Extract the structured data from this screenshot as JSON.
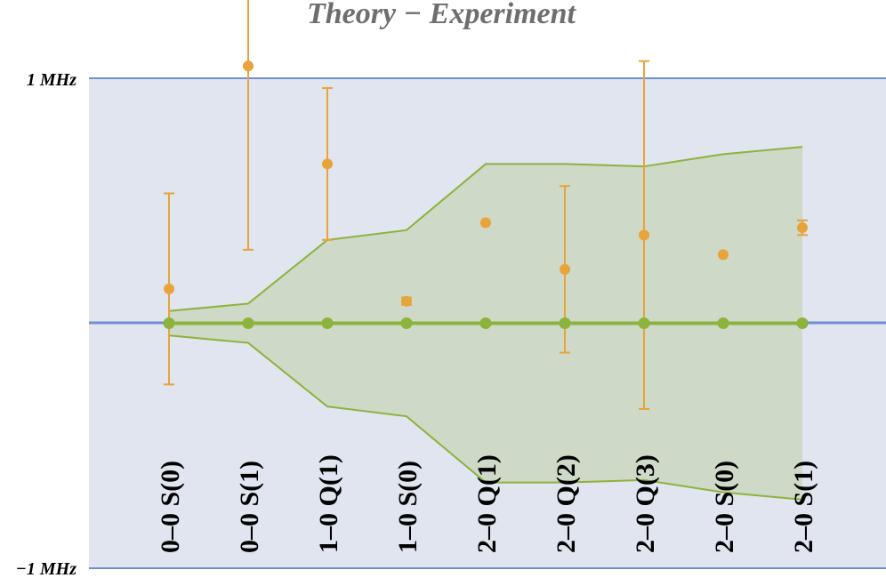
{
  "chart_data": {
    "type": "scatter",
    "title": "Theory − Experiment",
    "y_tick_labels": [
      "1 MHz",
      "−1 MHz"
    ],
    "ylim": [
      -1,
      1
    ],
    "categories": [
      "0–0 S(0)",
      "0–0 S(1)",
      "1–0 Q(1)",
      "1–0 S(0)",
      "2–0 Q(1)",
      "2–0 Q(2)",
      "2–0 Q(3)",
      "2–0 S(0)",
      "2–0 S(1)"
    ],
    "series": [
      {
        "kind": "points_with_error_bars",
        "color": "#e8a33a",
        "values": [
          0.14,
          1.05,
          0.65,
          0.09,
          0.41,
          0.22,
          0.36,
          0.28,
          0.39
        ],
        "errors": [
          0.39,
          0.75,
          0.31,
          0.015,
          0.0,
          0.34,
          0.71,
          0.0,
          0.03
        ]
      },
      {
        "kind": "zero_line_points",
        "color": "#8cb33c",
        "values": [
          0,
          0,
          0,
          0,
          0,
          0,
          0,
          0,
          0
        ]
      }
    ],
    "band": {
      "color": "#8cb33c",
      "upper": [
        0.05,
        0.08,
        0.34,
        0.38,
        0.65,
        0.65,
        0.64,
        0.69,
        0.72
      ],
      "lower": [
        -0.05,
        -0.08,
        -0.34,
        -0.38,
        -0.65,
        -0.65,
        -0.64,
        -0.69,
        -0.72
      ]
    },
    "colors": {
      "plot_background": "#e0e5f0",
      "axis_lines": "#6f8fd0",
      "title": "#6e6e6e"
    },
    "grid": false,
    "legend": "none"
  }
}
